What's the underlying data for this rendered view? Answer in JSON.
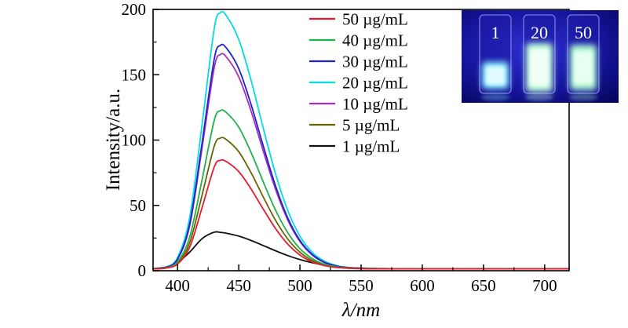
{
  "chart_data": {
    "type": "line",
    "title": "",
    "xlabel": "λ/nm",
    "ylabel": "Intensity/a.u.",
    "xlim": [
      380,
      720
    ],
    "ylim": [
      0,
      200
    ],
    "x_ticks": [
      400,
      450,
      500,
      550,
      600,
      650,
      700
    ],
    "y_ticks": [
      0,
      50,
      100,
      150,
      200
    ],
    "x_minor_step": 25,
    "y_minor_step": 25,
    "grid": false,
    "legend_position": "upper-center-inside",
    "peak_wavelength_nm": 435,
    "x": [
      380,
      390,
      400,
      410,
      420,
      430,
      435,
      440,
      450,
      460,
      470,
      480,
      490,
      500,
      510,
      520,
      530,
      540,
      550,
      560,
      570,
      580,
      590,
      600,
      620,
      640,
      660,
      680,
      700,
      720
    ],
    "series": [
      {
        "name": "50 µg/mL",
        "color": "#e8192c",
        "values": [
          1.5,
          2.0,
          5.1,
          18.3,
          48.2,
          79.4,
          84.5,
          83.5,
          75.9,
          62.7,
          47.2,
          32.4,
          20.4,
          12.0,
          6.8,
          3.9,
          2.5,
          1.9,
          1.6,
          1.5,
          1.5,
          1.5,
          1.5,
          1.5,
          1.5,
          1.5,
          1.5,
          1.5,
          1.5,
          1.5
        ]
      },
      {
        "name": "40 µg/mL",
        "color": "#1fb14c",
        "values": [
          1.5,
          2.2,
          6.8,
          26.1,
          69.6,
          115.0,
          122.5,
          121.0,
          109.9,
          90.7,
          68.1,
          46.5,
          29.1,
          16.9,
          9.3,
          5.0,
          3.0,
          2.1,
          1.7,
          1.6,
          1.5,
          1.5,
          1.5,
          1.5,
          1.5,
          1.5,
          1.5,
          1.5,
          1.5,
          1.5
        ]
      },
      {
        "name": "30 µg/mL",
        "color": "#2222cc",
        "values": [
          1.6,
          2.5,
          9.0,
          36.2,
          97.8,
          161.9,
          172.5,
          170.4,
          154.7,
          127.5,
          95.6,
          65.1,
          40.5,
          23.2,
          12.5,
          6.5,
          3.6,
          2.3,
          1.8,
          1.6,
          1.5,
          1.5,
          1.5,
          1.5,
          1.5,
          1.5,
          1.5,
          1.5,
          1.5,
          1.5
        ]
      },
      {
        "name": "20 µg/mL",
        "color": "#00dce0",
        "values": [
          1.6,
          2.6,
          10.1,
          41.3,
          111.8,
          185.3,
          197.5,
          195.1,
          177.1,
          146.0,
          109.3,
          74.4,
          46.2,
          26.4,
          14.1,
          7.3,
          3.9,
          2.4,
          1.8,
          1.6,
          1.5,
          1.5,
          1.5,
          1.5,
          1.5,
          1.5,
          1.5,
          1.5,
          1.5,
          1.5
        ]
      },
      {
        "name": "10 µg/mL",
        "color": "#a030c0",
        "values": [
          1.6,
          2.4,
          8.7,
          34.8,
          93.8,
          155.3,
          165.5,
          163.5,
          148.4,
          122.4,
          91.7,
          62.5,
          38.9,
          22.3,
          12.0,
          6.3,
          3.5,
          2.3,
          1.8,
          1.6,
          1.5,
          1.5,
          1.5,
          1.5,
          1.5,
          1.5,
          1.5,
          1.5,
          1.5,
          1.5
        ]
      },
      {
        "name": "5 µg/mL",
        "color": "#666600",
        "values": [
          1.5,
          2.1,
          5.9,
          21.8,
          57.8,
          95.3,
          101.5,
          100.3,
          91.1,
          75.2,
          56.5,
          38.7,
          24.3,
          14.2,
          7.9,
          4.4,
          2.7,
          2.0,
          1.7,
          1.6,
          1.5,
          1.5,
          1.5,
          1.5,
          1.5,
          1.5,
          1.5,
          1.5,
          1.5,
          1.5
        ]
      },
      {
        "name": "1 µg/mL",
        "color": "#111111",
        "values": [
          1.7,
          2.7,
          6.3,
          14.3,
          24.5,
          29.5,
          29.3,
          28.7,
          26.5,
          23.2,
          19.3,
          15.3,
          11.6,
          8.5,
          6.1,
          4.3,
          3.1,
          2.4,
          2.0,
          1.7,
          1.6,
          1.5,
          1.5,
          1.5,
          1.5,
          1.5,
          1.5,
          1.5,
          1.5,
          1.5
        ]
      }
    ]
  },
  "inset": {
    "labels": [
      "1",
      "20",
      "50"
    ]
  }
}
